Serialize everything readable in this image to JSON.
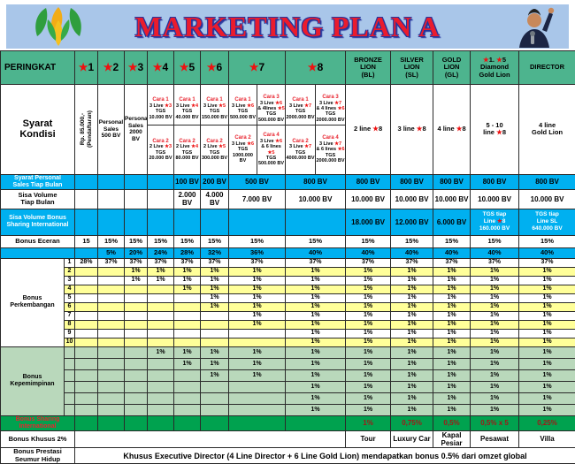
{
  "header": {
    "title": "MARKETING PLAN A"
  },
  "peringkat": {
    "label": "PERINGKAT",
    "stars": [
      "★1",
      "★2",
      "★3",
      "★4",
      "★5",
      "★6",
      "★7",
      "★8"
    ],
    "ranks": [
      "BRONZE\nLION\n(BL)",
      "SILVER\nLION\n(SL)",
      "GOLD\nLION\n(GL)",
      "★1. ★5\nDiamond\nGold Lion",
      "DIRECTOR"
    ]
  },
  "syarat": {
    "label": "Syarat\nKondisi",
    "s1": "Rp. 85.000,-\n(Pendaftaran)",
    "s2": "Personal\nSales\n500 BV",
    "s3": "Personal\nSales\n2000 BV",
    "cara": {
      "s4t": {
        "t": "Cara 1",
        "b": "3 Live ★3\nTGS\n10.000 BV"
      },
      "s4b": {
        "t": "Cara 2",
        "b": "2 Live ★3\nTGS\n20.000 BV"
      },
      "s5t": {
        "t": "Cara 1",
        "b": "3 Live ★4\nTGS\n40.000 BV"
      },
      "s5b": {
        "t": "Cara 2",
        "b": "2 Live ★4\nTGS\n80.000 BV"
      },
      "s6t": {
        "t": "Cara 1",
        "b": "3 Live ★5\nTGS\n150.000 BV"
      },
      "s6b": {
        "t": "Cara 2",
        "b": "2 Live ★5\nTGS\n300.000 BV"
      },
      "s7at": {
        "t": "Cara 1",
        "b": "3 Live ★6\nTGS\n500.000 BV"
      },
      "s7ab": {
        "t": "Cara 2",
        "b": "3 Live ★6\nTGS\n1000.000 BV"
      },
      "s7bt": {
        "t": "Cara 3",
        "b": "3 Live ★6\n& 4lines ★5\nTGS\n500.000 BV"
      },
      "s7bb": {
        "t": "Cara 4",
        "b": "3 Live ★6\n& 6 lines ★5\nTGS\n500.000 BV"
      },
      "s8at": {
        "t": "Cara 1",
        "b": "3 Live ★7\nTGS\n2000.000 BV"
      },
      "s8ab": {
        "t": "Cara 2",
        "b": "3 Live ★7\nTGS\n4000.000 BV"
      },
      "s8bt": {
        "t": "Cara 3",
        "b": "3 Live ★7\n& 4 lines ★6\nTGS\n2000.000 BV"
      },
      "s8bb": {
        "t": "Cara 4",
        "b": "3 Live ★7\n& 6 lines ★6\nTGS\n2000.000 BV"
      }
    },
    "right": [
      "2 line ★8",
      "3 line ★8",
      "4 line ★8",
      "5 - 10\nline ★8",
      "4 line\nGold Lion"
    ]
  },
  "labels": {
    "sps": "Syarat Personal\nSales Tiap Bulan",
    "sisa_volume": "Sisa Volume\nTiap Bulan",
    "sisa_bonus": "Sisa Volume Bonus\nSharing International",
    "eceran": "Bonus Eceran",
    "perkembangan": "Bonus\nPerkembangan",
    "kepemimpinan": "Bonus\nKepemimpinan",
    "sharing": "Bonus Sharing\nInternational",
    "khusus": "Bonus Khusus 2%",
    "prestasi": "Bonus Prestasi\nSeumur Hidup"
  },
  "cells": {
    "sps": [
      "",
      "",
      "",
      "",
      "100 BV",
      "200 BV",
      {
        "t": "500 BV",
        "span": 2
      },
      {
        "t": "800 BV",
        "span": 2
      },
      "800 BV",
      "800 BV",
      "800 BV",
      "800 BV",
      "800 BV"
    ],
    "sisa_volume": [
      "",
      "",
      "",
      "",
      "2.000\nBV",
      "4.000\nBV",
      {
        "t": "7.000 BV",
        "span": 2
      },
      {
        "t": "10.000 BV",
        "span": 2
      },
      "10.000 BV",
      "10.000 BV",
      "10.000 BV",
      "10.000 BV",
      "10.000 BV"
    ],
    "sisa_bonus": [
      "",
      "",
      "",
      "",
      "",
      "",
      {
        "t": "",
        "span": 2
      },
      {
        "t": "",
        "span": 2
      },
      "18.000 BV",
      "12.000 BV",
      "6.000 BV",
      {
        "t": "TGS tiap\nLine ★8\n160.000 BV",
        "c": "wt"
      },
      {
        "t": "TGS tiap\nLine SL\n640.000 BV",
        "c": "wt"
      }
    ],
    "eceran": [
      "15",
      "15%",
      "15%",
      "15%",
      "15%",
      "15%",
      {
        "t": "15%",
        "span": 2
      },
      {
        "t": "15%",
        "span": 2
      },
      "15%",
      "15%",
      "15%",
      "15%",
      "15%"
    ],
    "pct": [
      "",
      "5%",
      "20%",
      "24%",
      "28%",
      "32%",
      {
        "t": "36%",
        "span": 2
      },
      {
        "t": "40%",
        "span": 2
      },
      "40%",
      "40%",
      "40%",
      "40%",
      "40%"
    ],
    "p1": [
      "1",
      "28%",
      "37%",
      "37%",
      "37%",
      "37%",
      "37%",
      {
        "t": "37%",
        "span": 2
      },
      {
        "t": "37%",
        "span": 2
      },
      "37%",
      "37%",
      "37%",
      "37%",
      "37%"
    ],
    "p2": [
      "2",
      "",
      "",
      "1%",
      "1%",
      "1%",
      "1%",
      {
        "t": "1%",
        "span": 2
      },
      {
        "t": "1%",
        "span": 2
      },
      "1%",
      "1%",
      "1%",
      "1%",
      "1%"
    ],
    "p3": [
      "3",
      "",
      "",
      "1%",
      "1%",
      "1%",
      "1%",
      {
        "t": "1%",
        "span": 2
      },
      {
        "t": "1%",
        "span": 2
      },
      "1%",
      "1%",
      "1%",
      "1%",
      "1%"
    ],
    "p4": [
      "4",
      "",
      "",
      "",
      "",
      "1%",
      "1%",
      {
        "t": "1%",
        "span": 2
      },
      {
        "t": "1%",
        "span": 2
      },
      "1%",
      "1%",
      "1%",
      "1%",
      "1%"
    ],
    "p5": [
      "5",
      "",
      "",
      "",
      "",
      "",
      "1%",
      {
        "t": "1%",
        "span": 2
      },
      {
        "t": "1%",
        "span": 2
      },
      "1%",
      "1%",
      "1%",
      "1%",
      "1%"
    ],
    "p6": [
      "6",
      "",
      "",
      "",
      "",
      "",
      "1%",
      {
        "t": "1%",
        "span": 2
      },
      {
        "t": "1%",
        "span": 2
      },
      "1%",
      "1%",
      "1%",
      "1%",
      "1%"
    ],
    "p7": [
      "7",
      "",
      "",
      "",
      "",
      "",
      "",
      {
        "t": "1%",
        "span": 2
      },
      {
        "t": "1%",
        "span": 2
      },
      "1%",
      "1%",
      "1%",
      "1%",
      "1%"
    ],
    "p8": [
      "8",
      "",
      "",
      "",
      "",
      "",
      "",
      {
        "t": "1%",
        "span": 2
      },
      {
        "t": "1%",
        "span": 2
      },
      "1%",
      "1%",
      "1%",
      "1%",
      "1%"
    ],
    "p9": [
      "9",
      "",
      "",
      "",
      "",
      "",
      "",
      {
        "t": "",
        "span": 2
      },
      {
        "t": "1%",
        "span": 2
      },
      "1%",
      "1%",
      "1%",
      "1%",
      "1%"
    ],
    "p10": [
      "10",
      "",
      "",
      "",
      "",
      "",
      "",
      {
        "t": "",
        "span": 2
      },
      {
        "t": "1%",
        "span": 2
      },
      "1%",
      "1%",
      "1%",
      "1%",
      "1%"
    ],
    "k1": [
      "",
      "",
      "",
      "",
      "1%",
      "1%",
      "1%",
      {
        "t": "1%",
        "span": 2
      },
      {
        "t": "1%",
        "span": 2
      },
      "1%",
      "1%",
      "1%",
      "1%",
      "1%"
    ],
    "k2": [
      "",
      "",
      "",
      "",
      "",
      "1%",
      "1%",
      {
        "t": "1%",
        "span": 2
      },
      {
        "t": "1%",
        "span": 2
      },
      "1%",
      "1%",
      "1%",
      "1%",
      "1%"
    ],
    "k3": [
      "",
      "",
      "",
      "",
      "",
      "",
      "1%",
      {
        "t": "1%",
        "span": 2
      },
      {
        "t": "1%",
        "span": 2
      },
      "1%",
      "1%",
      "1%",
      "1%",
      "1%"
    ],
    "k4": [
      "",
      "",
      "",
      "",
      "",
      "",
      "",
      {
        "t": "",
        "span": 2
      },
      {
        "t": "1%",
        "span": 2
      },
      "1%",
      "1%",
      "1%",
      "1%",
      "1%"
    ],
    "k5": [
      "",
      "",
      "",
      "",
      "",
      "",
      "",
      {
        "t": "",
        "span": 2
      },
      {
        "t": "1%",
        "span": 2
      },
      "1%",
      "1%",
      "1%",
      "1%",
      "1%"
    ],
    "k6": [
      "",
      "",
      "",
      "",
      "",
      "",
      "",
      {
        "t": "",
        "span": 2
      },
      {
        "t": "1%",
        "span": 2
      },
      "1%",
      "1%",
      "1%",
      "1%",
      "1%"
    ],
    "sharing": [
      "",
      "",
      "",
      "",
      "",
      "",
      {
        "t": "",
        "span": 2
      },
      {
        "t": "",
        "span": 2
      },
      {
        "t": "1%",
        "c": "dr"
      },
      {
        "t": "0,75%",
        "c": "dr"
      },
      {
        "t": "0,5%",
        "c": "dr"
      },
      {
        "t": "0,5% x 5",
        "c": "dr"
      },
      {
        "t": "0,25%",
        "c": "dr"
      }
    ],
    "khusus": [
      {
        "t": "",
        "span": 10
      },
      "Tour",
      "Luxury Car",
      "Kapal Pesiar",
      "Pesawat",
      "Villa"
    ],
    "prestasi": [
      {
        "t": "Khusus Executive Director (4 Line Director + 6 Line Gold Lion) mendapatkan bonus 0.5% dari omzet global",
        "span": 15,
        "c": "big"
      }
    ]
  }
}
